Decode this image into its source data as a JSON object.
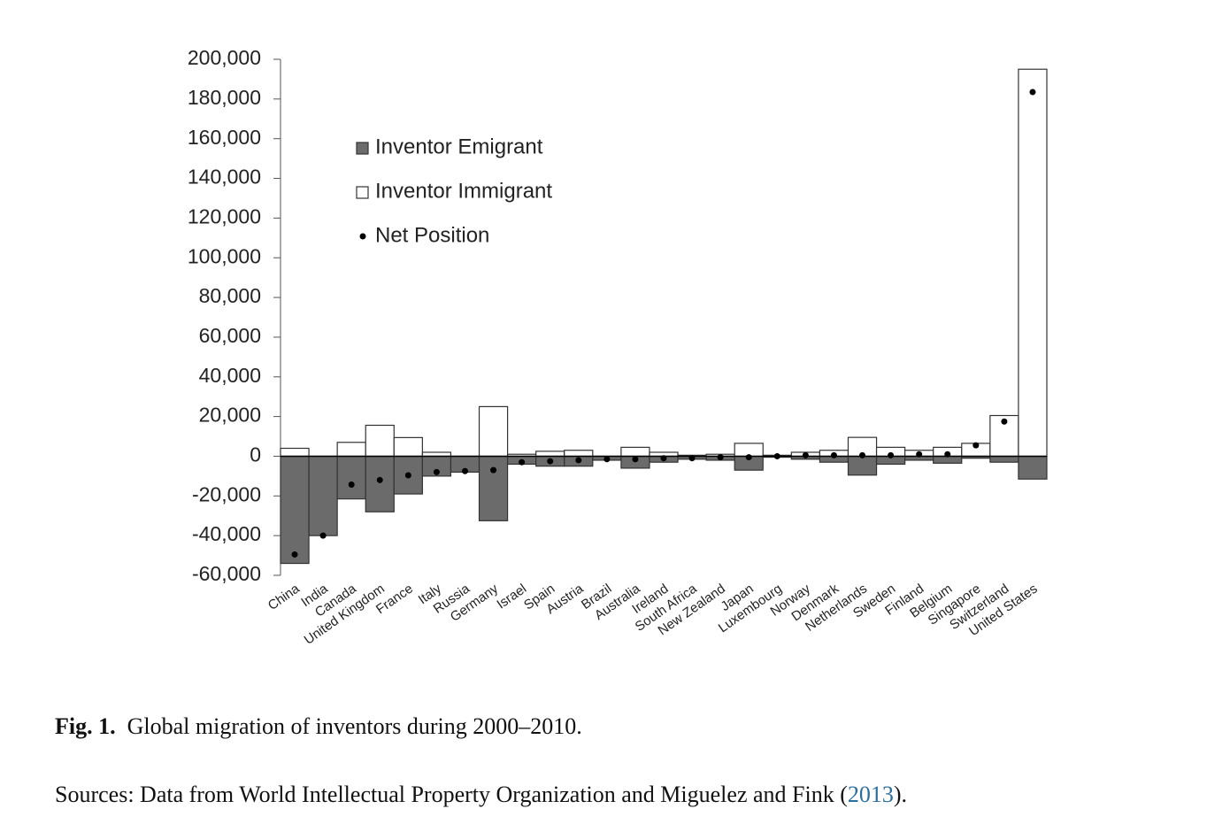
{
  "chart_data": {
    "type": "bar",
    "categories": [
      "China",
      "India",
      "Canada",
      "United Kingdom",
      "France",
      "Italy",
      "Russia",
      "Germany",
      "Israel",
      "Spain",
      "Austria",
      "Brazil",
      "Australia",
      "Ireland",
      "South Africa",
      "New Zealand",
      "Japan",
      "Luxembourg",
      "Norway",
      "Denmark",
      "Netherlands",
      "Sweden",
      "Finland",
      "Belgium",
      "Singapore",
      "Switzerland",
      "United States"
    ],
    "series": [
      {
        "name": "Inventor Emigrant",
        "type": "bar",
        "color": "#6b6b6b",
        "values": [
          -54000,
          -40000,
          -21500,
          -28000,
          -19000,
          -10000,
          -8000,
          -32500,
          -4000,
          -5000,
          -5000,
          -2000,
          -6000,
          -3000,
          -1500,
          -2000,
          -7000,
          -500,
          -1500,
          -3000,
          -9500,
          -4000,
          -2000,
          -3500,
          -1000,
          -3000,
          -11500
        ]
      },
      {
        "name": "Inventor Immigrant",
        "type": "bar",
        "color": "#ffffff",
        "values": [
          4000,
          0,
          7000,
          15600,
          9400,
          2000,
          0,
          25000,
          1000,
          2500,
          3000,
          0,
          4500,
          2000,
          500,
          1000,
          6500,
          500,
          2000,
          3000,
          9500,
          4500,
          3000,
          4500,
          6500,
          20500,
          195000
        ]
      },
      {
        "name": "Net Position",
        "type": "scatter",
        "color": "#000000",
        "values": [
          -49500,
          -40000,
          -14300,
          -12000,
          -9600,
          -8000,
          -7500,
          -7000,
          -3000,
          -2500,
          -2000,
          -1500,
          -1500,
          -1000,
          -1000,
          -500,
          -500,
          0,
          500,
          500,
          500,
          500,
          1000,
          1000,
          5500,
          17500,
          183500
        ]
      }
    ],
    "ylim": [
      -60000,
      200000
    ],
    "yticks": [
      {
        "value": -60000,
        "label": "-60,000"
      },
      {
        "value": -40000,
        "label": "-40,000"
      },
      {
        "value": -20000,
        "label": "-20,000"
      },
      0,
      {
        "value": 20000,
        "label": "20,000"
      },
      {
        "value": 40000,
        "label": "40,000"
      },
      {
        "value": 60000,
        "label": "60,000"
      },
      {
        "value": 80000,
        "label": "80,000"
      },
      {
        "value": 100000,
        "label": "100,000"
      },
      {
        "value": 120000,
        "label": "120,000"
      },
      {
        "value": 140000,
        "label": "140,000"
      },
      {
        "value": 160000,
        "label": "160,000"
      },
      {
        "value": 180000,
        "label": "180,000"
      },
      {
        "value": 200000,
        "label": "200,000"
      }
    ],
    "grid": false,
    "legend": "upper left"
  },
  "caption": {
    "label": "Fig. 1.",
    "text": "Global migration of inventors during 2000–2010.",
    "sources_before": "Sources: Data from World Intellectual Property Organization and Miguelez and Fink (",
    "sources_link": "2013",
    "sources_after": ")."
  }
}
